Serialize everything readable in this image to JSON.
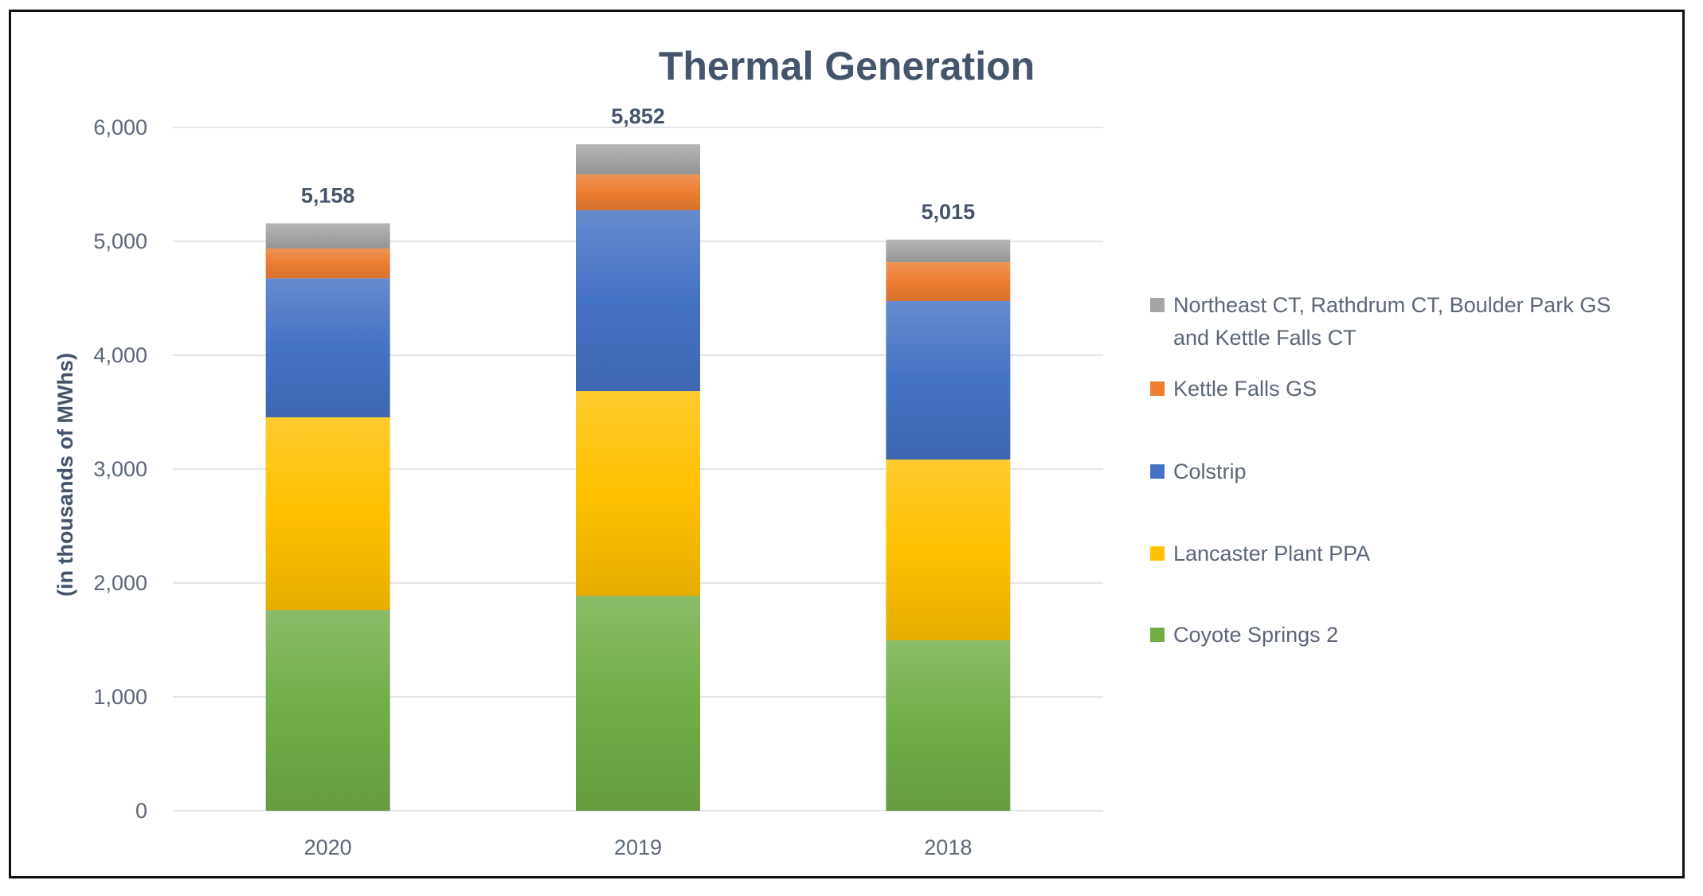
{
  "chart_data": {
    "type": "bar",
    "stacked": true,
    "title": "Thermal Generation",
    "xlabel": "",
    "ylabel": "(in thousands of MWhs)",
    "categories": [
      "2020",
      "2019",
      "2018"
    ],
    "ylim": [
      0,
      6000
    ],
    "yticks": [
      0,
      1000,
      2000,
      3000,
      4000,
      5000,
      6000
    ],
    "ytick_labels": [
      "0",
      "1,000",
      "2,000",
      "3,000",
      "4,000",
      "5,000",
      "6,000"
    ],
    "grid": true,
    "legend_position": "right",
    "series": [
      {
        "name": "Coyote Springs 2",
        "color": "#70ad47",
        "values": [
          1762,
          1888,
          1497
        ]
      },
      {
        "name": "Lancaster Plant PPA",
        "color": "#ffc000",
        "values": [
          1693,
          1797,
          1587
        ]
      },
      {
        "name": "Colstrip",
        "color": "#4472c4",
        "values": [
          1221,
          1588,
          1392
        ]
      },
      {
        "name": "Kettle Falls GS",
        "color": "#ed7d31",
        "values": [
          261,
          314,
          342
        ]
      },
      {
        "name": "Northeast CT, Rathdrum CT, Boulder Park GS and Kettle Falls CT",
        "color": "#a5a5a5",
        "values": [
          221,
          265,
          197
        ]
      }
    ],
    "totals": [
      5158,
      5852,
      5015
    ],
    "total_labels": [
      "5,158",
      "5,852",
      "5,015"
    ],
    "legend": [
      {
        "lines": [
          "Northeast CT, Rathdrum CT, Boulder Park GS",
          "and Kettle Falls CT"
        ],
        "series_index": 4
      },
      {
        "lines": [
          "Kettle Falls GS"
        ],
        "series_index": 3
      },
      {
        "lines": [
          "Colstrip"
        ],
        "series_index": 2
      },
      {
        "lines": [
          "Lancaster Plant PPA"
        ],
        "series_index": 1
      },
      {
        "lines": [
          "Coyote Springs 2"
        ],
        "series_index": 0
      }
    ]
  }
}
